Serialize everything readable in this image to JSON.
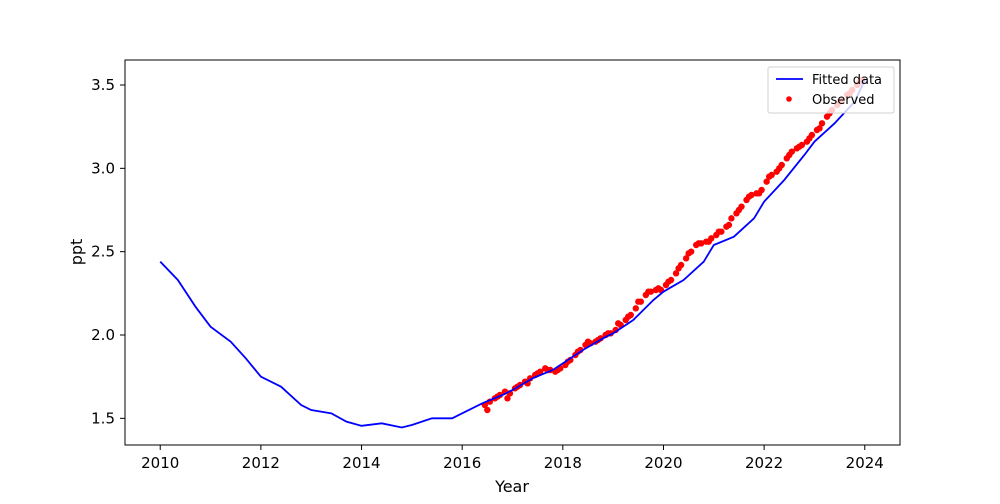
{
  "chart_data": {
    "type": "line",
    "title": "",
    "xlabel": "Year",
    "ylabel": "ppt",
    "xlim": [
      2009.3,
      2024.7
    ],
    "ylim": [
      1.34,
      3.65
    ],
    "x_ticks": [
      2010,
      2012,
      2014,
      2016,
      2018,
      2020,
      2022,
      2024
    ],
    "y_ticks": [
      1.5,
      2.0,
      2.5,
      3.0,
      3.5
    ],
    "x_tick_labels": [
      "2010",
      "2012",
      "2014",
      "2016",
      "2018",
      "2020",
      "2022",
      "2024"
    ],
    "y_tick_labels": [
      "1.5",
      "2.0",
      "2.5",
      "3.0",
      "3.5"
    ],
    "grid": false,
    "legend_position": "upper-right",
    "series": [
      {
        "name": "Fitted data",
        "kind": "line",
        "color": "#0000ff",
        "x": [
          2010.0,
          2010.35,
          2010.7,
          2011.0,
          2011.4,
          2011.7,
          2012.0,
          2012.4,
          2012.8,
          2013.0,
          2013.4,
          2013.7,
          2014.0,
          2014.4,
          2014.8,
          2015.0,
          2015.4,
          2015.8,
          2016.0,
          2016.4,
          2016.8,
          2017.0,
          2017.4,
          2017.8,
          2018.0,
          2018.4,
          2018.8,
          2019.0,
          2019.4,
          2019.8,
          2020.0,
          2020.4,
          2020.8,
          2021.0,
          2021.4,
          2021.8,
          2022.0,
          2022.4,
          2022.8,
          2023.0,
          2023.4,
          2023.8,
          2024.0
        ],
        "y": [
          2.44,
          2.33,
          2.17,
          2.05,
          1.96,
          1.86,
          1.75,
          1.69,
          1.58,
          1.55,
          1.53,
          1.48,
          1.455,
          1.47,
          1.445,
          1.46,
          1.5,
          1.5,
          1.53,
          1.59,
          1.64,
          1.67,
          1.74,
          1.79,
          1.83,
          1.91,
          1.98,
          2.01,
          2.09,
          2.21,
          2.26,
          2.33,
          2.44,
          2.54,
          2.59,
          2.7,
          2.8,
          2.93,
          3.08,
          3.16,
          3.27,
          3.4,
          3.53
        ]
      },
      {
        "name": "Observed",
        "kind": "scatter",
        "color": "#ff0000",
        "x": [
          2016.45,
          2016.55,
          2016.65,
          2016.75,
          2016.85,
          2016.95,
          2017.05,
          2017.15,
          2017.25,
          2017.35,
          2017.45,
          2017.55,
          2017.65,
          2017.75,
          2017.85,
          2017.95,
          2018.05,
          2018.15,
          2018.25,
          2018.35,
          2018.45,
          2018.55,
          2018.65,
          2018.75,
          2018.85,
          2018.95,
          2019.05,
          2019.15,
          2019.25,
          2019.35,
          2019.45,
          2019.55,
          2019.65,
          2019.75,
          2019.85,
          2019.95,
          2020.05,
          2020.15,
          2020.25,
          2020.35,
          2020.45,
          2020.55,
          2020.65,
          2020.75,
          2020.85,
          2020.95,
          2021.05,
          2021.15,
          2021.25,
          2021.35,
          2021.45,
          2021.55,
          2021.65,
          2021.75,
          2021.85,
          2021.95,
          2022.05,
          2022.15,
          2022.25,
          2022.35,
          2022.45,
          2022.55,
          2022.65,
          2022.75,
          2022.85,
          2022.95,
          2023.05,
          2023.15,
          2023.25,
          2023.35,
          2023.45,
          2023.55,
          2023.65,
          2023.75,
          2023.85,
          2023.95,
          2016.5,
          2016.7,
          2016.9,
          2017.1,
          2017.3,
          2017.5,
          2017.7,
          2017.9,
          2018.1,
          2018.3,
          2018.5,
          2018.7,
          2018.9,
          2019.1,
          2019.3,
          2019.5,
          2019.7,
          2019.9,
          2020.1,
          2020.3,
          2020.5,
          2020.7,
          2020.9,
          2021.1,
          2021.3,
          2021.5,
          2021.7,
          2021.9,
          2022.1,
          2022.3,
          2022.5,
          2022.7,
          2022.9,
          2023.1,
          2023.3,
          2023.5,
          2023.7,
          2023.9
        ],
        "y": [
          1.58,
          1.6,
          1.62,
          1.64,
          1.66,
          1.65,
          1.68,
          1.7,
          1.72,
          1.74,
          1.76,
          1.78,
          1.8,
          1.79,
          1.78,
          1.8,
          1.82,
          1.85,
          1.88,
          1.91,
          1.94,
          1.95,
          1.96,
          1.98,
          2.0,
          2.01,
          2.03,
          2.06,
          2.09,
          2.12,
          2.16,
          2.2,
          2.24,
          2.26,
          2.27,
          2.27,
          2.3,
          2.33,
          2.37,
          2.42,
          2.46,
          2.5,
          2.54,
          2.55,
          2.56,
          2.58,
          2.6,
          2.62,
          2.65,
          2.7,
          2.73,
          2.77,
          2.81,
          2.84,
          2.85,
          2.87,
          2.92,
          2.96,
          2.98,
          3.02,
          3.06,
          3.1,
          3.12,
          3.14,
          3.16,
          3.2,
          3.23,
          3.27,
          3.31,
          3.35,
          3.38,
          3.41,
          3.44,
          3.47,
          3.5,
          3.53,
          1.55,
          1.63,
          1.62,
          1.69,
          1.71,
          1.77,
          1.79,
          1.79,
          1.84,
          1.9,
          1.96,
          1.97,
          2.01,
          2.07,
          2.11,
          2.2,
          2.26,
          2.28,
          2.32,
          2.4,
          2.49,
          2.55,
          2.56,
          2.62,
          2.66,
          2.75,
          2.83,
          2.85,
          2.95,
          3.0,
          3.08,
          3.13,
          3.18,
          3.24,
          3.33,
          3.4,
          3.45,
          3.52
        ]
      }
    ]
  }
}
